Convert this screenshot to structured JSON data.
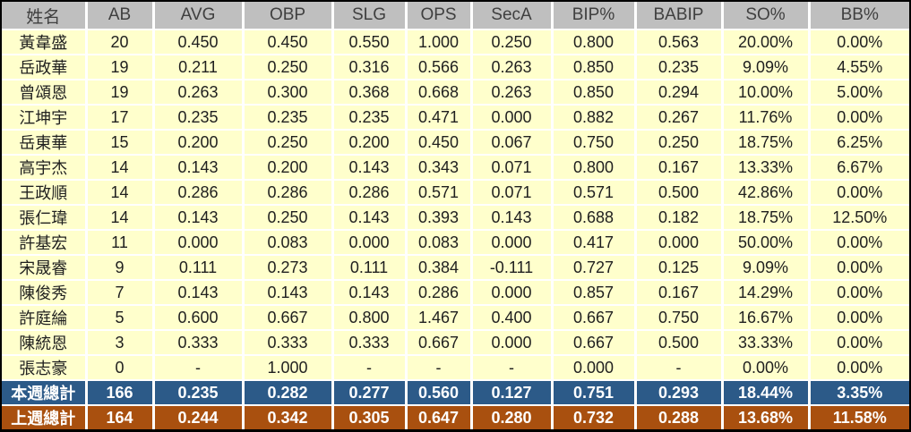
{
  "chart_data": {
    "type": "table",
    "columns": [
      "姓名",
      "AB",
      "AVG",
      "OBP",
      "SLG",
      "OPS",
      "SecA",
      "BIP%",
      "BABIP",
      "SO%",
      "BB%"
    ],
    "rows": [
      {
        "name": "黃韋盛",
        "values": [
          "20",
          "0.450",
          "0.450",
          "0.550",
          "1.000",
          "0.250",
          "0.800",
          "0.563",
          "20.00%",
          "0.00%"
        ]
      },
      {
        "name": "岳政華",
        "values": [
          "19",
          "0.211",
          "0.250",
          "0.316",
          "0.566",
          "0.263",
          "0.850",
          "0.235",
          "9.09%",
          "4.55%"
        ]
      },
      {
        "name": "曾頌恩",
        "values": [
          "19",
          "0.263",
          "0.300",
          "0.368",
          "0.668",
          "0.263",
          "0.850",
          "0.294",
          "10.00%",
          "5.00%"
        ]
      },
      {
        "name": "江坤宇",
        "values": [
          "17",
          "0.235",
          "0.235",
          "0.235",
          "0.471",
          "0.000",
          "0.882",
          "0.267",
          "11.76%",
          "0.00%"
        ]
      },
      {
        "name": "岳東華",
        "values": [
          "15",
          "0.200",
          "0.250",
          "0.200",
          "0.450",
          "0.067",
          "0.750",
          "0.250",
          "18.75%",
          "6.25%"
        ]
      },
      {
        "name": "高宇杰",
        "values": [
          "14",
          "0.143",
          "0.200",
          "0.143",
          "0.343",
          "0.071",
          "0.800",
          "0.167",
          "13.33%",
          "6.67%"
        ]
      },
      {
        "name": "王政順",
        "values": [
          "14",
          "0.286",
          "0.286",
          "0.286",
          "0.571",
          "0.071",
          "0.571",
          "0.500",
          "42.86%",
          "0.00%"
        ]
      },
      {
        "name": "張仁瑋",
        "values": [
          "14",
          "0.143",
          "0.250",
          "0.143",
          "0.393",
          "0.143",
          "0.688",
          "0.182",
          "18.75%",
          "12.50%"
        ]
      },
      {
        "name": "許基宏",
        "values": [
          "11",
          "0.000",
          "0.083",
          "0.000",
          "0.083",
          "0.000",
          "0.417",
          "0.000",
          "50.00%",
          "0.00%"
        ]
      },
      {
        "name": "宋晟睿",
        "values": [
          "9",
          "0.111",
          "0.273",
          "0.111",
          "0.384",
          "-0.111",
          "0.727",
          "0.125",
          "9.09%",
          "0.00%"
        ]
      },
      {
        "name": "陳俊秀",
        "values": [
          "7",
          "0.143",
          "0.143",
          "0.143",
          "0.286",
          "0.000",
          "0.857",
          "0.167",
          "14.29%",
          "0.00%"
        ]
      },
      {
        "name": "許庭綸",
        "values": [
          "5",
          "0.600",
          "0.667",
          "0.800",
          "1.467",
          "0.400",
          "0.667",
          "0.750",
          "16.67%",
          "0.00%"
        ]
      },
      {
        "name": "陳統恩",
        "values": [
          "3",
          "0.333",
          "0.333",
          "0.333",
          "0.667",
          "0.000",
          "0.667",
          "0.500",
          "33.33%",
          "0.00%"
        ]
      },
      {
        "name": "張志豪",
        "values": [
          "0",
          "-",
          "1.000",
          "-",
          "-",
          "-",
          "0.000",
          "-",
          "0.00%",
          "0.00%"
        ]
      }
    ],
    "totals": [
      {
        "label": "本週總計",
        "values": [
          "166",
          "0.235",
          "0.282",
          "0.277",
          "0.560",
          "0.127",
          "0.751",
          "0.293",
          "18.44%",
          "3.35%"
        ]
      },
      {
        "label": "上週總計",
        "values": [
          "164",
          "0.244",
          "0.342",
          "0.305",
          "0.647",
          "0.280",
          "0.732",
          "0.288",
          "13.68%",
          "11.58%"
        ]
      }
    ]
  },
  "colors": {
    "header_bg": "#BFBFBF",
    "header_text": "#3F3F3F",
    "body_bg": "#FFFFCC",
    "body_text": "#1F1F1F",
    "grid": "#FFFFFF",
    "frame": "#000000",
    "current_week_bg": "#2C5A88",
    "previous_week_bg": "#A9500F",
    "totals_text": "#FFFFFF"
  }
}
